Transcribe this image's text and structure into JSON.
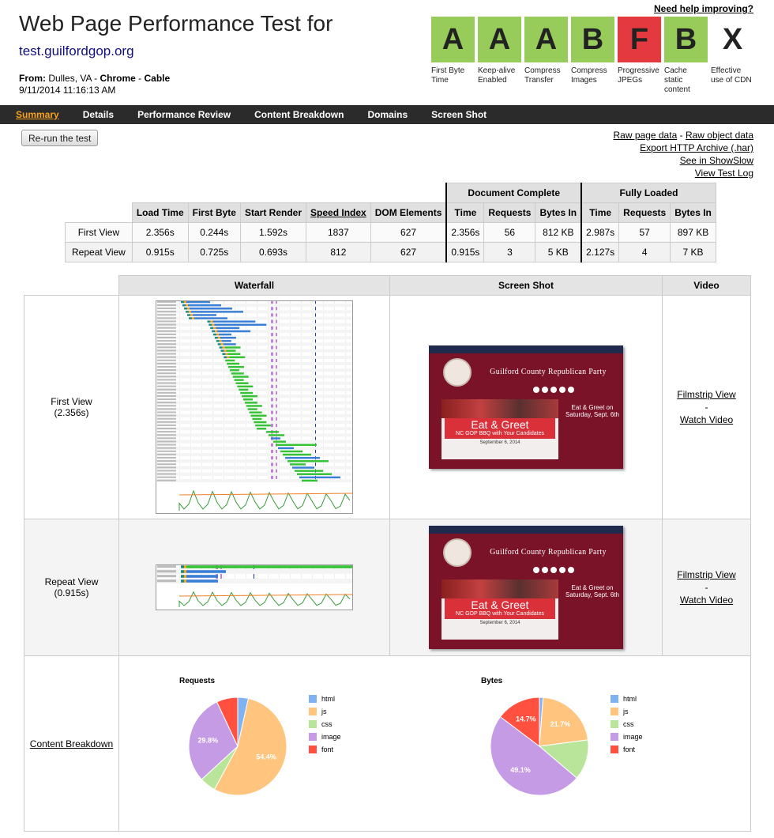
{
  "header": {
    "title": "Web Page Performance Test for",
    "url": "test.guilfordgop.org",
    "from_label": "From:",
    "location": "Dulles, VA",
    "browser": "Chrome",
    "connection": "Cable",
    "timestamp": "9/11/2014 11:16:13 AM",
    "help_link": "Need help improving?"
  },
  "grades": [
    {
      "grade": "A",
      "label": "First Byte Time",
      "color": "#97cc5b"
    },
    {
      "grade": "A",
      "label": "Keep-alive Enabled",
      "color": "#97cc5b"
    },
    {
      "grade": "A",
      "label": "Compress Transfer",
      "color": "#97cc5b"
    },
    {
      "grade": "B",
      "label": "Compress Images",
      "color": "#97cc5b"
    },
    {
      "grade": "F",
      "label": "Progressive JPEGs",
      "color": "#e4393e"
    },
    {
      "grade": "B",
      "label": "Cache static content",
      "color": "#97cc5b"
    },
    {
      "grade": "X",
      "label": "Effective use of CDN",
      "color": "#ffffff"
    }
  ],
  "nav": {
    "tabs": [
      "Summary",
      "Details",
      "Performance Review",
      "Content Breakdown",
      "Domains",
      "Screen Shot"
    ],
    "active": "Summary"
  },
  "actions": {
    "rerun": "Re-run the test",
    "raw_page": "Raw page data",
    "dash": "-",
    "raw_object": "Raw object data",
    "export_har": "Export HTTP Archive (.har)",
    "showslow": "See in ShowSlow",
    "test_log": "View Test Log"
  },
  "summary": {
    "group_headers": [
      "Document Complete",
      "Fully Loaded"
    ],
    "columns": [
      "Load Time",
      "First Byte",
      "Start Render",
      "Speed Index",
      "DOM Elements",
      "Time",
      "Requests",
      "Bytes In",
      "Time",
      "Requests",
      "Bytes In"
    ],
    "rows": [
      {
        "label": "First View",
        "values": [
          "2.356s",
          "0.244s",
          "1.592s",
          "1837",
          "627",
          "2.356s",
          "56",
          "812 KB",
          "2.987s",
          "57",
          "897 KB"
        ]
      },
      {
        "label": "Repeat View",
        "values": [
          "0.915s",
          "0.725s",
          "0.693s",
          "812",
          "627",
          "0.915s",
          "3",
          "5 KB",
          "2.127s",
          "4",
          "7 KB"
        ]
      }
    ]
  },
  "results": {
    "headers": [
      "Waterfall",
      "Screen Shot",
      "Video"
    ],
    "first_view": {
      "label": "First View",
      "time": "(2.356s)"
    },
    "repeat_view": {
      "label": "Repeat View",
      "time": "(0.915s)"
    },
    "filmstrip": "Filmstrip View",
    "dash": "-",
    "watch_video": "Watch Video",
    "content_breakdown": "Content Breakdown"
  },
  "screenshot": {
    "org_name": "Guilford County Republican Party",
    "headline": "Eat & Greet",
    "subline": "NC GOP BBQ with Your Candidates",
    "date": "September 6, 2014",
    "side_text": "Eat & Greet on Saturday, Sept. 6th"
  },
  "chart_data": [
    {
      "type": "pie",
      "title": "Requests",
      "categories": [
        "html",
        "js",
        "css",
        "image",
        "font"
      ],
      "values": [
        3.5,
        54.4,
        5.3,
        29.8,
        7.0
      ],
      "data_labels": [
        "",
        "54.4%",
        "",
        "29.8%",
        ""
      ],
      "colors": [
        "#7fb2f0",
        "#ffc57f",
        "#b8e59a",
        "#c59be6",
        "#ff5040"
      ],
      "legend": "right"
    },
    {
      "type": "pie",
      "title": "Bytes",
      "categories": [
        "html",
        "js",
        "css",
        "image",
        "font"
      ],
      "values": [
        1.2,
        21.7,
        13.3,
        49.1,
        14.7
      ],
      "data_labels": [
        "",
        "21.7%",
        "",
        "49.1%",
        "14.7%"
      ],
      "colors": [
        "#7fb2f0",
        "#ffc57f",
        "#b8e59a",
        "#c59be6",
        "#ff5040"
      ],
      "legend": "right"
    }
  ]
}
